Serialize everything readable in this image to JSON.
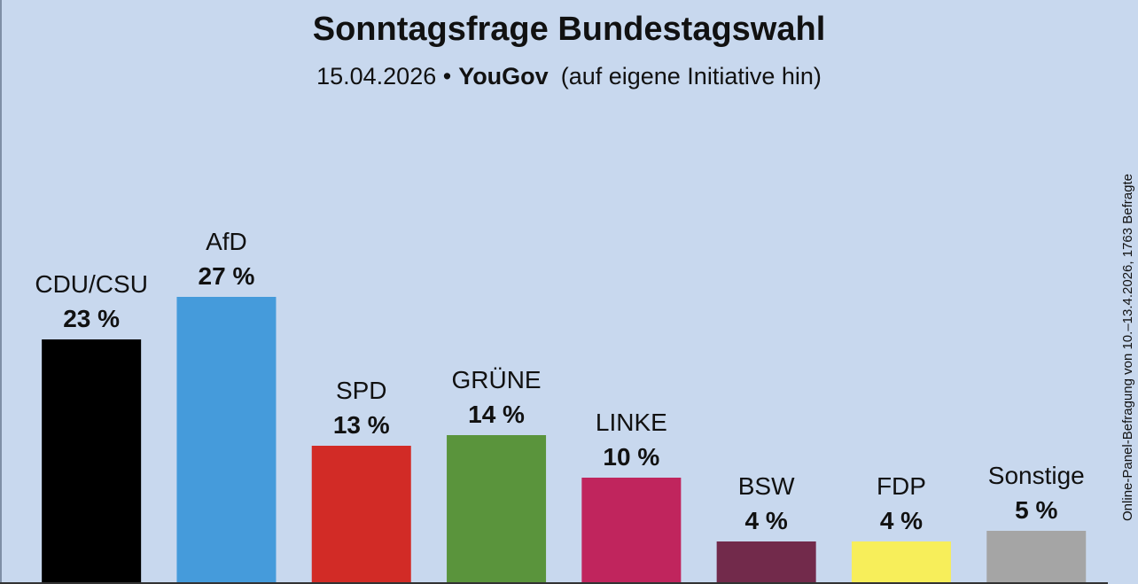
{
  "chart_data": {
    "type": "bar",
    "title": "Sonntagsfrage Bundestagswahl",
    "subtitle": [
      "15.04.2026 •",
      "YouGov",
      "(auf eigene Initiative hin)"
    ],
    "side_note": "Online-Panel-Befragung von 10.–13.4.2026, 1763 Befragte",
    "categories": [
      "CDU/CSU",
      "AfD",
      "SPD",
      "GRÜNE",
      "LINKE",
      "BSW",
      "FDP",
      "Sonstige"
    ],
    "values": [
      23,
      27,
      13,
      14,
      10,
      4,
      4,
      5
    ],
    "value_labels": [
      "23 %",
      "27 %",
      "13 %",
      "14 %",
      "10 %",
      "4 %",
      "4 %",
      "5 %"
    ],
    "colors": [
      "#000000",
      "#459bdb",
      "#d22b26",
      "#5a943c",
      "#c0255d",
      "#722a4b",
      "#f7ee5a",
      "#a5a5a5"
    ]
  }
}
